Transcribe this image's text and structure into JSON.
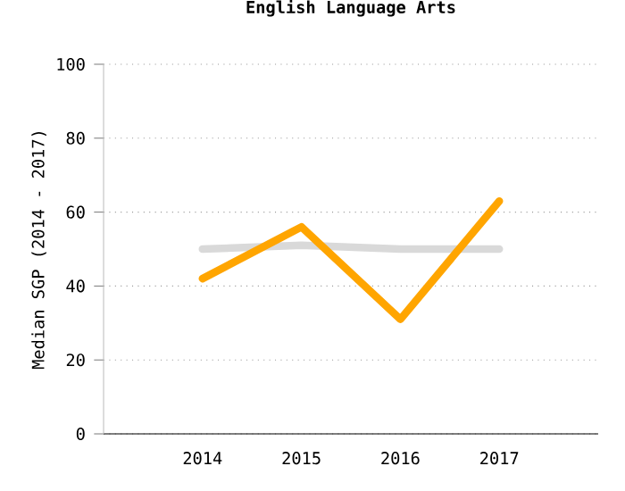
{
  "chart_data": {
    "type": "line",
    "title": "English Language Arts",
    "ylabel": "Median SGP (2014 - 2017)",
    "categories": [
      "2014",
      "2015",
      "2016",
      "2017"
    ],
    "series": [
      {
        "color": "#d9d9d9",
        "values": [
          50,
          51,
          50,
          50
        ]
      },
      {
        "color": "#ffa500",
        "values": [
          42,
          56,
          31,
          63
        ]
      }
    ],
    "ylim": [
      0,
      100
    ],
    "yticks": [
      0,
      20,
      40,
      60,
      80,
      100
    ],
    "grid": "y",
    "marker": "none",
    "line_style": "solid"
  }
}
